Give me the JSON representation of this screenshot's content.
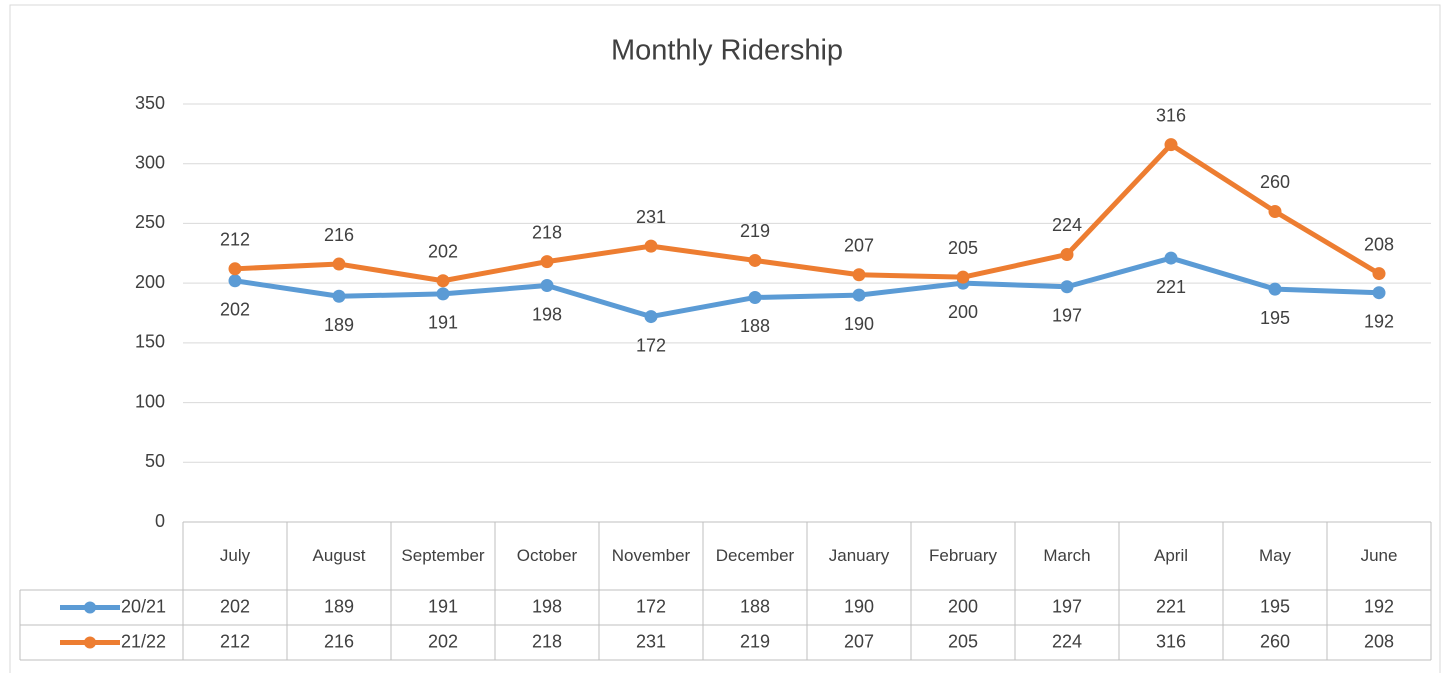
{
  "chart_data": {
    "type": "line",
    "title": "Monthly Ridership",
    "categories": [
      "July",
      "August",
      "September",
      "October",
      "November",
      "December",
      "January",
      "February",
      "March",
      "April",
      "May",
      "June"
    ],
    "series": [
      {
        "name": "20/21",
        "color": "#5b9bd5",
        "values": [
          202,
          189,
          191,
          198,
          172,
          188,
          190,
          200,
          197,
          221,
          195,
          192
        ]
      },
      {
        "name": "21/22",
        "color": "#ed7d31",
        "values": [
          212,
          216,
          202,
          218,
          231,
          219,
          207,
          205,
          224,
          316,
          260,
          208
        ]
      }
    ],
    "ylim": [
      0,
      350
    ],
    "yticks": [
      0,
      50,
      100,
      150,
      200,
      250,
      300,
      350
    ],
    "grid": true
  }
}
